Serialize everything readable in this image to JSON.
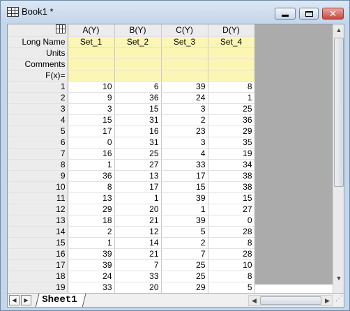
{
  "window": {
    "title": "Book1 *"
  },
  "columns": [
    {
      "header": "A(Y)",
      "long_name": "Set_1",
      "values": [
        10,
        9,
        3,
        15,
        17,
        0,
        16,
        1,
        36,
        8,
        13,
        29,
        18,
        2,
        1,
        39,
        39,
        24,
        33
      ]
    },
    {
      "header": "B(Y)",
      "long_name": "Set_2",
      "values": [
        6,
        36,
        15,
        31,
        16,
        31,
        25,
        27,
        13,
        17,
        1,
        20,
        21,
        12,
        14,
        21,
        7,
        33,
        20
      ]
    },
    {
      "header": "C(Y)",
      "long_name": "Set_3",
      "values": [
        39,
        24,
        3,
        2,
        23,
        3,
        4,
        33,
        17,
        15,
        39,
        1,
        39,
        5,
        2,
        7,
        25,
        25,
        29
      ]
    },
    {
      "header": "D(Y)",
      "long_name": "Set_4",
      "values": [
        8,
        1,
        25,
        36,
        29,
        35,
        19,
        34,
        38,
        38,
        15,
        27,
        0,
        28,
        8,
        28,
        10,
        8,
        5
      ]
    }
  ],
  "row_labels": {
    "long_name": "Long Name",
    "units": "Units",
    "comments": "Comments",
    "fx": "F(x)="
  },
  "row_numbers": [
    1,
    2,
    3,
    4,
    5,
    6,
    7,
    8,
    9,
    10,
    11,
    12,
    13,
    14,
    15,
    16,
    17,
    18,
    19
  ],
  "sheet_tab": "Sheet1",
  "icons": {
    "app": "worksheet-grid-icon",
    "corner": "grid-corner-icon",
    "minimize": "minimize-icon",
    "maximize": "maximize-icon",
    "close": "close-icon"
  },
  "colors": {
    "meta_row_bg": "#fbf6b3",
    "header_bg": "#ececec",
    "empty_area": "#ababab"
  }
}
